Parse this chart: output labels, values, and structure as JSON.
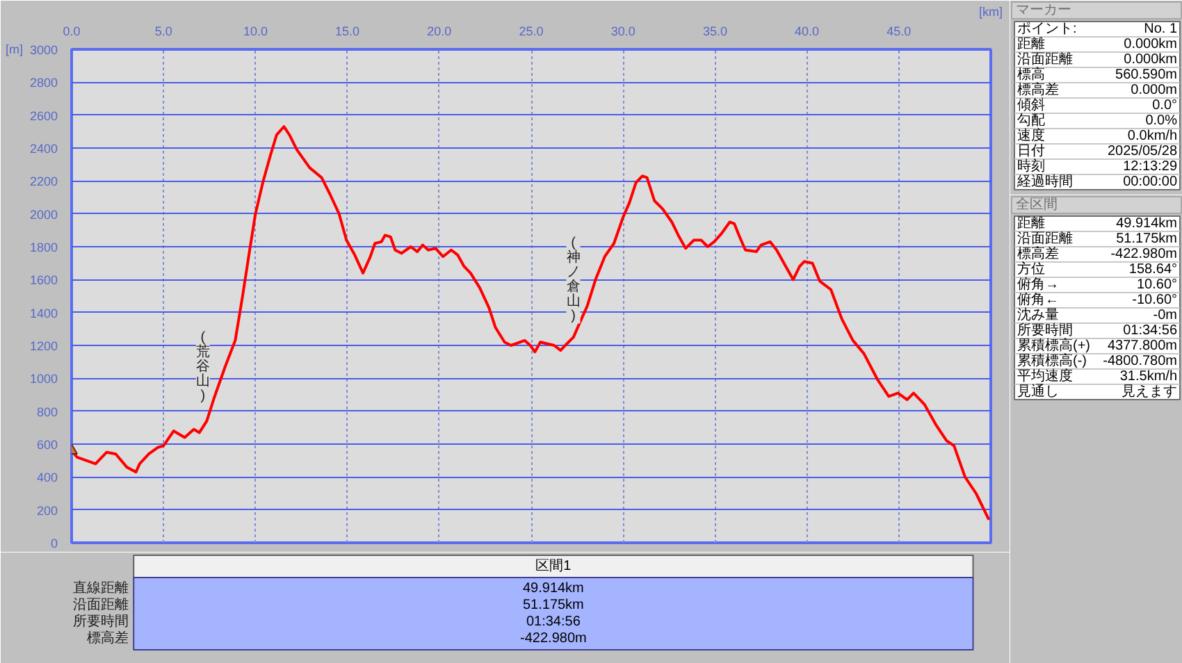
{
  "chart_data": [
    {
      "type": "line",
      "xlabel": "[km]",
      "ylabel": "[m]",
      "xlim": [
        0,
        50
      ],
      "ylim": [
        0,
        3000
      ],
      "xticks": [
        {
          "value": 0,
          "label": "0.0"
        },
        {
          "value": 5,
          "label": "5.0"
        },
        {
          "value": 10,
          "label": "10.0"
        },
        {
          "value": 15,
          "label": "15.0"
        },
        {
          "value": 20,
          "label": "20.0"
        },
        {
          "value": 25,
          "label": "25.0"
        },
        {
          "value": 30,
          "label": "30.0"
        },
        {
          "value": 35,
          "label": "35.0"
        },
        {
          "value": 40,
          "label": "40.0"
        },
        {
          "value": 45,
          "label": "45.0"
        }
      ],
      "yticks": [
        0,
        200,
        400,
        600,
        800,
        1000,
        1200,
        1400,
        1600,
        1800,
        2000,
        2200,
        2400,
        2600,
        2800,
        3000
      ],
      "grid": true,
      "annotations": [
        {
          "text": "(荒谷山)",
          "x": 8.35,
          "y": 1070
        },
        {
          "text": "(神ノ倉山)",
          "x": 28.5,
          "y": 1600
        }
      ],
      "series": [
        {
          "color": "#ff0000",
          "x": [
            0,
            0.3,
            1.3,
            1.9,
            2.4,
            3.0,
            3.5,
            3.7,
            4.2,
            4.7,
            5.0,
            5.55,
            6.15,
            6.65,
            6.95,
            7.35,
            7.75,
            8.35,
            8.9,
            9.3,
            9.7,
            10.0,
            10.4,
            10.8,
            11.15,
            11.55,
            11.85,
            12.25,
            12.95,
            13.6,
            14.05,
            14.55,
            14.95,
            15.4,
            15.85,
            16.25,
            16.5,
            16.85,
            17.05,
            17.35,
            17.6,
            17.95,
            18.45,
            18.8,
            19.1,
            19.4,
            19.8,
            20.2,
            20.65,
            21.0,
            21.35,
            21.7,
            22.2,
            22.7,
            23.05,
            23.55,
            23.9,
            24.65,
            24.95,
            25.2,
            25.5,
            26.25,
            26.6,
            26.85,
            27.3,
            27.65,
            28.05,
            28.5,
            29.0,
            29.5,
            30.0,
            30.35,
            30.7,
            31.05,
            31.3,
            31.7,
            32.15,
            32.65,
            33.0,
            33.4,
            33.85,
            34.25,
            34.6,
            34.95,
            35.35,
            35.8,
            36.05,
            36.3,
            36.65,
            37.25,
            37.5,
            38.0,
            38.35,
            38.85,
            39.25,
            39.6,
            39.85,
            40.3,
            40.7,
            41.3,
            41.9,
            42.5,
            43.1,
            43.85,
            44.45,
            44.95,
            45.45,
            45.8,
            46.4,
            47.0,
            47.6,
            48.0,
            48.6,
            49.2,
            49.9
          ],
          "values": [
            560,
            520,
            480,
            550,
            540,
            460,
            430,
            480,
            540,
            580,
            590,
            680,
            640,
            690,
            670,
            740,
            880,
            1070,
            1230,
            1500,
            1790,
            2000,
            2190,
            2350,
            2480,
            2530,
            2480,
            2390,
            2280,
            2220,
            2120,
            2000,
            1840,
            1750,
            1640,
            1740,
            1820,
            1830,
            1870,
            1860,
            1780,
            1760,
            1800,
            1770,
            1810,
            1780,
            1790,
            1740,
            1780,
            1750,
            1680,
            1640,
            1550,
            1430,
            1310,
            1220,
            1200,
            1230,
            1200,
            1160,
            1220,
            1200,
            1170,
            1200,
            1250,
            1340,
            1440,
            1600,
            1740,
            1820,
            1980,
            2070,
            2190,
            2230,
            2220,
            2080,
            2030,
            1950,
            1870,
            1790,
            1840,
            1840,
            1800,
            1830,
            1880,
            1950,
            1940,
            1870,
            1780,
            1770,
            1810,
            1830,
            1780,
            1680,
            1600,
            1680,
            1710,
            1700,
            1590,
            1540,
            1360,
            1230,
            1150,
            990,
            890,
            910,
            870,
            910,
            840,
            720,
            620,
            590,
            400,
            300,
            140
          ]
        },
        {
          "type": "scatter",
          "color": "#e07030",
          "marker": "triangle",
          "x": [
            0
          ],
          "values": [
            560
          ]
        }
      ]
    },
    {
      "type": "other",
      "title": "マーカー",
      "annotations": [
        "ポイント:",
        "No. 1",
        "距離",
        "0.000km",
        "沿面距離",
        "0.000km",
        "標高",
        "560.590m",
        "標高差",
        "0.000m",
        "傾斜",
        "0.0°",
        "勾配",
        "0.0%",
        "速度",
        "0.0km/h",
        "日付",
        "2025/05/28",
        "時刻",
        "12:13:29",
        "経過時間",
        "00:00:00"
      ]
    },
    {
      "type": "other",
      "title": "全区間",
      "annotations": [
        "距離",
        "49.914km",
        "沿面距離",
        "51.175km",
        "標高差",
        "-422.980m",
        "方位",
        "158.64°",
        "俯角→",
        "10.60°",
        "俯角←",
        "-10.60°",
        "沈み量",
        "-0m",
        "所要時間",
        "01:34:56",
        "累積標高(+)",
        "4377.800m",
        "累積標高(-)",
        "-4800.780m",
        "平均速度",
        "31.5km/h",
        "見通し",
        "見えます"
      ]
    },
    {
      "type": "other",
      "title": "区間1",
      "annotations": [
        "直線距離",
        "49.914km",
        "沿面距離",
        "51.175km",
        "所要時間",
        "01:34:56",
        "標高差",
        "-422.980m"
      ]
    }
  ]
}
